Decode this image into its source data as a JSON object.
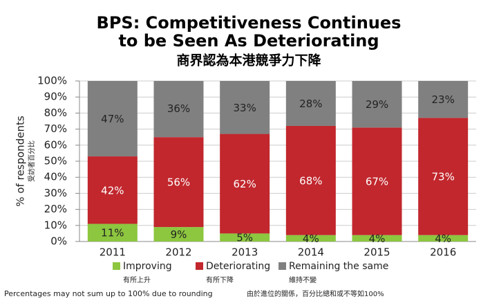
{
  "chart_data": {
    "type": "stacked_bar",
    "title": [
      "BPS: Competitiveness Continues",
      "to be Seen As Deteriorating"
    ],
    "subtitle": "商界認為本港競爭力下降",
    "y_label": "% of respondents",
    "y_label_zh": "受訪者百分比",
    "categories": [
      "2011",
      "2012",
      "2013",
      "2014",
      "2015",
      "2016"
    ],
    "series": [
      {
        "name": "Improving",
        "name_zh": "有所上升",
        "color": "#8dc63f",
        "values": [
          11,
          9,
          5,
          4,
          4,
          4
        ],
        "value_labels": [
          "11%",
          "9%",
          "5%",
          "4%",
          "4%",
          "4%"
        ]
      },
      {
        "name": "Deteriorating",
        "name_zh": "有所下降",
        "color": "#c1272d",
        "values": [
          42,
          56,
          62,
          68,
          67,
          73
        ],
        "value_labels": [
          "42%",
          "56%",
          "62%",
          "68%",
          "67%",
          "73%"
        ]
      },
      {
        "name": "Remaining the same",
        "name_zh": "維持不變",
        "color": "#808080",
        "values": [
          47,
          36,
          33,
          28,
          29,
          23
        ],
        "value_labels": [
          "47%",
          "36%",
          "33%",
          "28%",
          "29%",
          "23%"
        ]
      }
    ],
    "ylim": [
      0,
      100
    ],
    "yticks": [
      {
        "value": 0,
        "label": "0%"
      },
      {
        "value": 10,
        "label": "10%"
      },
      {
        "value": 20,
        "label": "20%"
      },
      {
        "value": 30,
        "label": "30%"
      },
      {
        "value": 40,
        "label": "40%"
      },
      {
        "value": 50,
        "label": "50%"
      },
      {
        "value": 60,
        "label": "60%"
      },
      {
        "value": 70,
        "label": "70%"
      },
      {
        "value": 80,
        "label": "80%"
      },
      {
        "value": 90,
        "label": "90%"
      },
      {
        "value": 100,
        "label": "100%"
      }
    ],
    "grid": true,
    "note": "Percentages may not sum up to 100% due to rounding",
    "note_zh": "由於進位的關係，百分比總和或不等如100%"
  }
}
